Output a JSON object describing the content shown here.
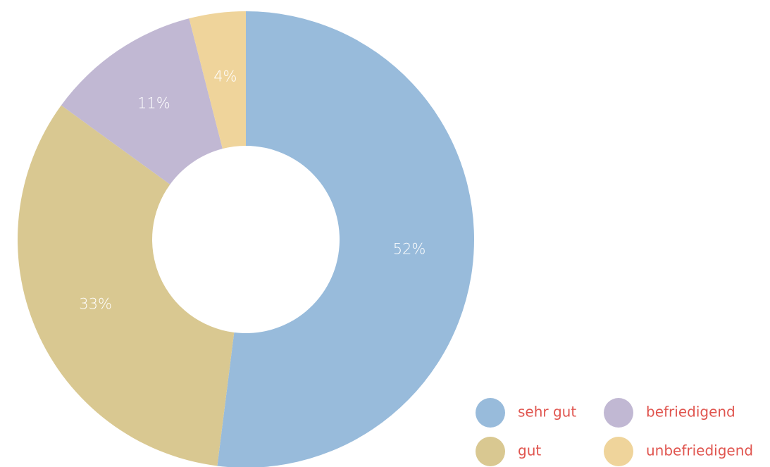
{
  "chart_data": {
    "type": "donut",
    "categories": [
      "sehr gut",
      "gut",
      "befriedigend",
      "unbefriedigend"
    ],
    "values": [
      52,
      33,
      11,
      4
    ],
    "value_labels": [
      "52%",
      "33%",
      "11%",
      "4%"
    ],
    "colors": [
      "#98bbdb",
      "#d9c891",
      "#c1b8d3",
      "#efd49b"
    ],
    "legend": "bottom-right"
  }
}
